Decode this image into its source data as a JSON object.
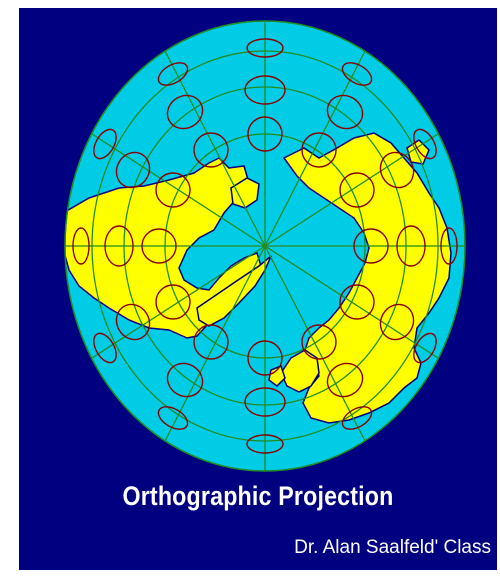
{
  "title": "Orthographic Projection",
  "credit": "Dr. Alan Saalfeld' Class",
  "colors": {
    "background": "#000080",
    "ocean": "#00CCE6",
    "land": "#FFFF00",
    "grid": "#228B22",
    "coastline": "#000080",
    "tissot": "#8B0000"
  },
  "map": {
    "projection": "orthographic",
    "center": "north-pole",
    "meridian_count": 12,
    "parallel_count": 3,
    "tissot_indicatrix": true
  }
}
